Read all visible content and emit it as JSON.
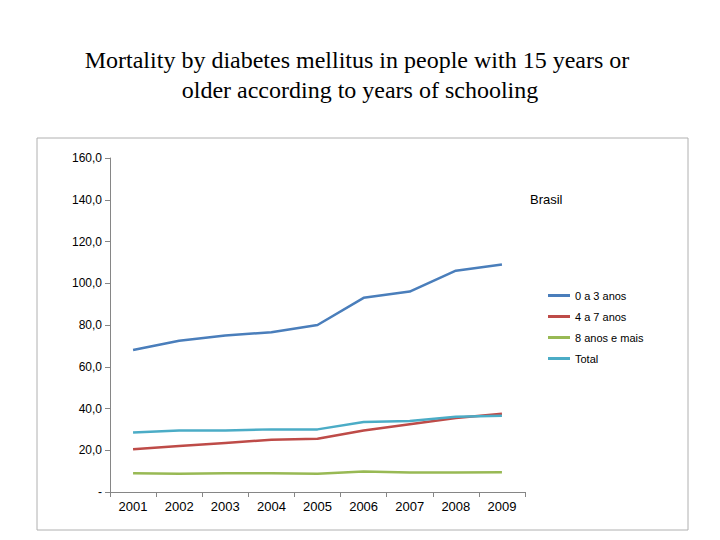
{
  "chart_data": {
    "type": "line",
    "title": "Mortality by diabetes mellitus in people with 15 years or older according to years of schooling",
    "annotations": [
      "Brasil"
    ],
    "categories": [
      "2001",
      "2002",
      "2003",
      "2004",
      "2005",
      "2006",
      "2007",
      "2008",
      "2009"
    ],
    "series": [
      {
        "name": "0 a 3 anos",
        "color": "#4a7ebb",
        "values": [
          68,
          72.5,
          75,
          76.5,
          80,
          93,
          96,
          106,
          109
        ]
      },
      {
        "name": "4 a 7 anos",
        "color": "#be4b48",
        "values": [
          20.5,
          22,
          23.5,
          25,
          25.5,
          29.5,
          32.5,
          35.5,
          37.5
        ]
      },
      {
        "name": "8 anos e mais",
        "color": "#98b954",
        "values": [
          9,
          8.8,
          9,
          9,
          8.8,
          9.8,
          9.3,
          9.3,
          9.5
        ]
      },
      {
        "name": "Total",
        "color": "#4bacc6",
        "values": [
          28.5,
          29.5,
          29.5,
          30,
          30,
          33.5,
          34,
          36,
          36.5
        ]
      }
    ],
    "ylim": [
      0,
      160
    ],
    "yticks": [
      {
        "value": 0,
        "label": "-"
      },
      {
        "value": 20,
        "label": "20,0"
      },
      {
        "value": 40,
        "label": "40,0"
      },
      {
        "value": 60,
        "label": "60,0"
      },
      {
        "value": 80,
        "label": "80,0"
      },
      {
        "value": 100,
        "label": "100,0"
      },
      {
        "value": 120,
        "label": "120,0"
      },
      {
        "value": 140,
        "label": "140,0"
      },
      {
        "value": 160,
        "label": "160,0"
      }
    ],
    "grid": false,
    "legend": "right"
  }
}
